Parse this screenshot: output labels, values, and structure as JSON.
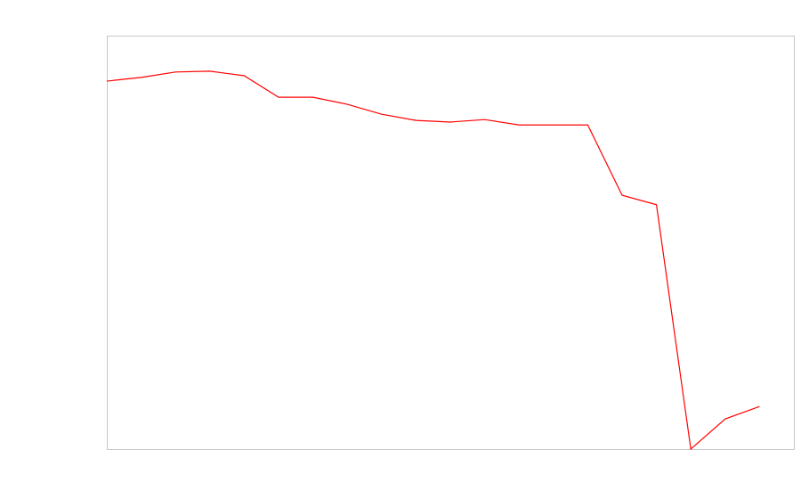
{
  "chart_data": {
    "type": "line",
    "x": [
      0,
      1,
      2,
      3,
      4,
      5,
      6,
      7,
      8,
      9,
      10,
      11,
      12,
      13,
      14,
      15,
      16,
      17,
      18,
      19
    ],
    "series": [
      {
        "color": "#ff0000",
        "values": [
          89.0,
          89.9,
          91.2,
          91.4,
          90.3,
          85.1,
          85.1,
          83.4,
          81.0,
          79.5,
          79.1,
          79.7,
          78.4,
          78.4,
          78.4,
          61.4,
          59.1,
          0,
          7.3,
          10.3
        ]
      }
    ],
    "xlim": [
      0,
      20
    ],
    "ylim": [
      0,
      100
    ]
  }
}
